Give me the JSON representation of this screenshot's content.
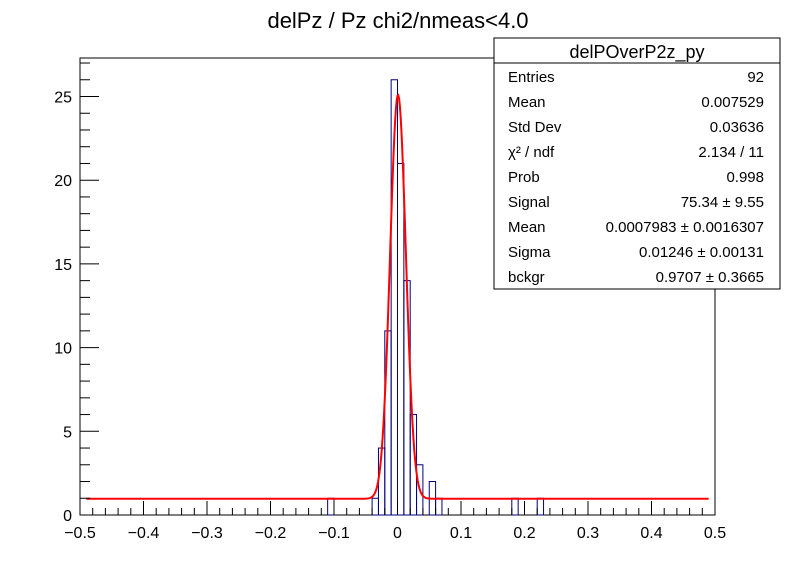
{
  "chart_data": {
    "type": "bar",
    "title": "delPz / Pz chi2/nmeas<4.0",
    "xlabel": "",
    "ylabel": "",
    "xlim": [
      -0.5,
      0.5
    ],
    "ylim": [
      0,
      27.3
    ],
    "x_tick_labels": [
      "−0.5",
      "−0.4",
      "−0.3",
      "−0.2",
      "−0.1",
      "0",
      "0.1",
      "0.2",
      "0.3",
      "0.4",
      "0.5"
    ],
    "x_tick_values": [
      -0.5,
      -0.4,
      -0.3,
      -0.2,
      -0.1,
      0,
      0.1,
      0.2,
      0.3,
      0.4,
      0.5
    ],
    "y_tick_labels": [
      "0",
      "5",
      "10",
      "15",
      "20",
      "25"
    ],
    "y_tick_values": [
      0,
      5,
      10,
      15,
      20,
      25
    ],
    "grid": false,
    "histogram": {
      "bin_width": 0.01,
      "bins": [
        {
          "x0": -0.11,
          "x1": -0.1,
          "count": 1
        },
        {
          "x0": -0.04,
          "x1": -0.03,
          "count": 1
        },
        {
          "x0": -0.03,
          "x1": -0.02,
          "count": 4
        },
        {
          "x0": -0.02,
          "x1": -0.01,
          "count": 11
        },
        {
          "x0": -0.01,
          "x1": 0.0,
          "count": 26
        },
        {
          "x0": 0.0,
          "x1": 0.01,
          "count": 21
        },
        {
          "x0": 0.01,
          "x1": 0.02,
          "count": 14
        },
        {
          "x0": 0.02,
          "x1": 0.03,
          "count": 6
        },
        {
          "x0": 0.03,
          "x1": 0.04,
          "count": 3
        },
        {
          "x0": 0.05,
          "x1": 0.06,
          "count": 2
        },
        {
          "x0": 0.06,
          "x1": 0.07,
          "count": 1
        },
        {
          "x0": 0.18,
          "x1": 0.19,
          "count": 1
        },
        {
          "x0": 0.22,
          "x1": 0.23,
          "count": 1
        }
      ],
      "color": "#000080"
    },
    "fit": {
      "function": "gaussian + constant",
      "signal": 75.34,
      "mean": 0.0007983,
      "sigma": 0.01246,
      "background": 0.9707,
      "color": "#ff0000"
    }
  },
  "stats_box": {
    "title": "delPOverP2z_py",
    "rows": [
      {
        "label": "Entries",
        "value": "92"
      },
      {
        "label": "Mean",
        "value": "0.007529"
      },
      {
        "label": "Std Dev",
        "value": "0.03636"
      },
      {
        "label": "χ² / ndf",
        "value": "2.134 / 11"
      },
      {
        "label": "Prob",
        "value": "0.998"
      },
      {
        "label": "Signal",
        "value": "75.34 ± 9.55"
      },
      {
        "label": "Mean",
        "value": "0.0007983  ± 0.0016307"
      },
      {
        "label": "Sigma",
        "value": "0.01246 ± 0.00131"
      },
      {
        "label": "bckgr",
        "value": "0.9707 ± 0.3665"
      }
    ]
  }
}
